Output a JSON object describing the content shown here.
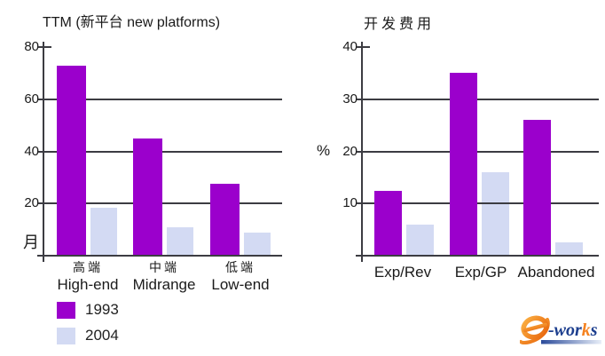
{
  "chart_data": [
    {
      "type": "bar",
      "title": "TTM (新平台 new platforms)",
      "ylabel": "月",
      "ylim": [
        0,
        80
      ],
      "yticks": [
        80,
        60,
        40,
        20
      ],
      "gridlines": [
        60,
        40,
        20
      ],
      "grid": true,
      "legend_position": "below-left",
      "categories": [
        "高端 High-end",
        "中端 Midrange",
        "低端 Low-end"
      ],
      "category_lines": [
        [
          "高端",
          "High-end"
        ],
        [
          "中端",
          "Midrange"
        ],
        [
          "低端",
          "Low-end"
        ]
      ],
      "series": [
        {
          "name": "1993",
          "color": "#9b00cc",
          "values": [
            73,
            45,
            27.5
          ]
        },
        {
          "name": "2004",
          "color": "#d3daf3",
          "values": [
            18.5,
            11,
            9
          ]
        }
      ]
    },
    {
      "type": "bar",
      "title": "开发费用",
      "ylabel": "%",
      "ylim": [
        0,
        40
      ],
      "yticks": [
        40,
        30,
        20,
        10
      ],
      "gridlines": [
        30,
        20,
        10
      ],
      "grid": true,
      "legend_position": "below-left",
      "categories": [
        "Exp/Rev",
        "Exp/GP",
        "Abandoned"
      ],
      "category_lines": [
        [
          "Exp/Rev"
        ],
        [
          "Exp/GP"
        ],
        [
          "Abandoned"
        ]
      ],
      "series": [
        {
          "name": "1993",
          "color": "#9b00cc",
          "values": [
            12.5,
            35,
            26
          ]
        },
        {
          "name": "2004",
          "color": "#d3daf3",
          "values": [
            6,
            16,
            2.5
          ]
        }
      ]
    }
  ],
  "legend": {
    "items": [
      {
        "label": "1993",
        "color": "#9b00cc"
      },
      {
        "label": "2004",
        "color": "#d3daf3"
      }
    ]
  },
  "logo": {
    "name": "e-works",
    "part1": "-wor",
    "part2": "k",
    "part3": "s",
    "blue": "#1c3e8e",
    "orange": "#f5821f"
  },
  "colors": {
    "series_1993": "#9b00cc",
    "series_2004": "#d3daf3",
    "gridline": "#3c3c42",
    "text": "#1a1a1a",
    "background": "#ffffff"
  }
}
